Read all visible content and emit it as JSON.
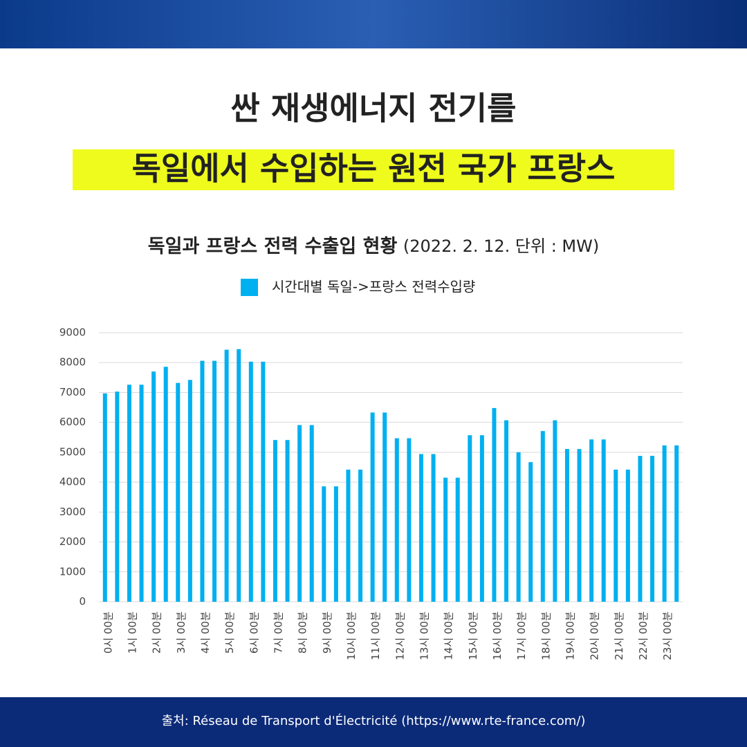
{
  "header": {
    "title_line1": "싼 재생에너지 전기를",
    "title_line2": "독일에서 수입하는 원전 국가 프랑스"
  },
  "chart_data": {
    "type": "bar",
    "title": "독일과 프랑스 전력 수출입 현황",
    "subtitle": "(2022. 2. 12. 단위 : MW)",
    "categories": [
      "0시 00분",
      null,
      "1시 00분",
      null,
      "2시 00분",
      null,
      "3시 00분",
      null,
      "4시 00분",
      null,
      "5시 00분",
      null,
      "6시 00분",
      null,
      "7시 00분",
      null,
      "8시 00분",
      null,
      "9시 00분",
      null,
      "10시 00분",
      null,
      "11시 00분",
      null,
      "12시 00분",
      null,
      "13시 00분",
      null,
      "14시 00분",
      null,
      "15시 00분",
      null,
      "16시 00분",
      null,
      "17시 00분",
      null,
      "18시 00분",
      null,
      "19시 00분",
      null,
      "20시 00분",
      null,
      "21시 00분",
      null,
      "22시 00분",
      null,
      "23시 00분",
      null
    ],
    "series": [
      {
        "name": "시간대별 독일->프랑스 전력수입량",
        "color": "#00b0f0",
        "values": [
          6970,
          7030,
          7260,
          7260,
          7700,
          7860,
          7320,
          7420,
          8060,
          8060,
          8430,
          8450,
          8030,
          8030,
          5410,
          5410,
          5910,
          5910,
          3860,
          3860,
          4420,
          4420,
          6330,
          6330,
          5470,
          5470,
          4940,
          4940,
          4150,
          4150,
          5570,
          5570,
          6480,
          6070,
          5000,
          4670,
          5710,
          6070,
          5110,
          5110,
          5430,
          5430,
          4420,
          4420,
          4880,
          4880,
          5230,
          5230
        ]
      }
    ],
    "ylim": [
      0,
      9000
    ],
    "yticks": [
      0,
      1000,
      2000,
      3000,
      4000,
      5000,
      6000,
      7000,
      8000,
      9000
    ],
    "grid": true
  },
  "footer": {
    "source": "출처: Réseau de Transport d'Électricité (https://www.rte-france.com/)"
  }
}
